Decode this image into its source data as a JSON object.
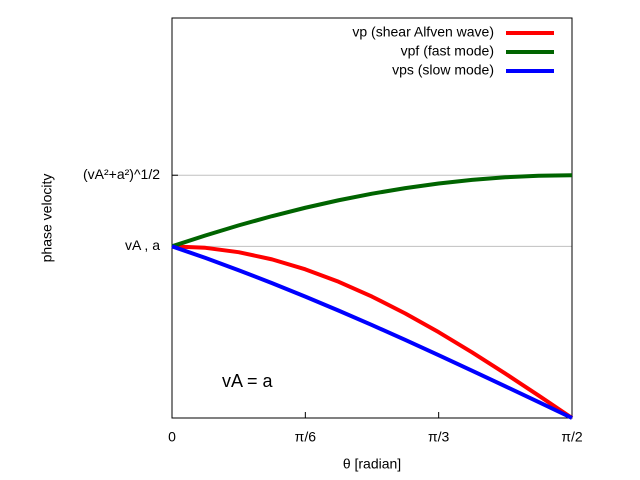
{
  "chart_data": {
    "type": "line",
    "xlabel": "θ [radian]",
    "ylabel": "phase velocity",
    "annotation": "vA = a",
    "x": [
      0,
      0.1309,
      0.2618,
      0.3927,
      0.5236,
      0.6545,
      0.7854,
      0.9163,
      1.0472,
      1.1781,
      1.309,
      1.4399,
      1.5708
    ],
    "series": [
      {
        "name": "vp (shear Alfven wave)",
        "color": "#ff0000",
        "values": [
          1,
          0.9914,
          0.9659,
          0.9239,
          0.866,
          0.7934,
          0.7071,
          0.6088,
          0.5,
          0.3827,
          0.2588,
          0.1305,
          0
        ]
      },
      {
        "name": "vpf (fast mode)",
        "color": "#006400",
        "values": [
          1,
          1.0632,
          1.122,
          1.1759,
          1.2247,
          1.2684,
          1.3066,
          1.3392,
          1.366,
          1.387,
          1.4021,
          1.4112,
          1.4142
        ]
      },
      {
        "name": "vps (slow mode)",
        "color": "#0000ff",
        "values": [
          1,
          0.9325,
          0.8609,
          0.7857,
          0.7071,
          0.6255,
          0.5412,
          0.4545,
          0.3661,
          0.2759,
          0.1846,
          0.0927,
          0
        ]
      }
    ],
    "xlim": [
      0,
      1.5708
    ],
    "ylim": [
      0,
      2.33
    ],
    "xticks": [
      {
        "value": 0,
        "label": "0"
      },
      {
        "value": 0.5236,
        "label": "π/6"
      },
      {
        "value": 1.0472,
        "label": "π/3"
      },
      {
        "value": 1.5708,
        "label": "π/2"
      }
    ],
    "yticks": [
      {
        "value": 1,
        "label": "vA , a"
      },
      {
        "value": 1.4142,
        "label": "(vA²+a²)^1/2"
      }
    ],
    "grid": true,
    "legend": "top-right"
  }
}
